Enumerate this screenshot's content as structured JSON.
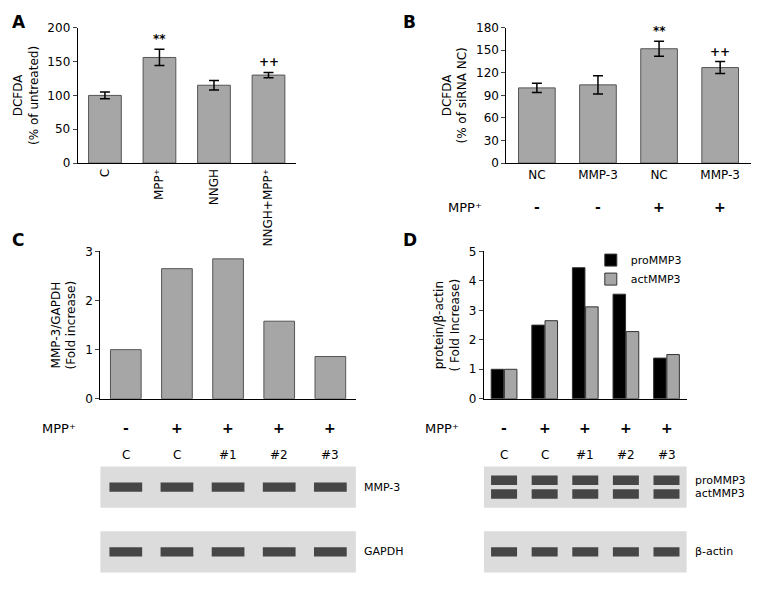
{
  "chart_data": [
    {
      "panel": "A",
      "type": "bar",
      "categories": [
        "C",
        "MPP⁺",
        "NNGH",
        "NNGH+MPP⁺"
      ],
      "values": [
        100,
        156,
        115,
        130
      ],
      "errors": [
        5,
        12,
        7,
        4
      ],
      "significance": [
        null,
        "**",
        null,
        "++"
      ],
      "y_label": [
        "DCFDA",
        "(% of untreated)"
      ],
      "color": "#a6a6a6",
      "ylim": [
        0,
        200
      ],
      "yticks": [
        0,
        50,
        100,
        150,
        200
      ],
      "grid": false
    },
    {
      "panel": "B",
      "type": "bar",
      "categories": [
        "NC",
        "MMP-3",
        "NC",
        "MMP-3"
      ],
      "values": [
        100,
        104,
        152,
        127
      ],
      "errors": [
        6,
        12,
        10,
        8
      ],
      "significance": [
        null,
        null,
        "**",
        "++"
      ],
      "row_label": "MPP⁺",
      "row_values": [
        "-",
        "-",
        "+",
        "+"
      ],
      "y_label": [
        "DCFDA",
        "(% of siRNA NC)"
      ],
      "color": "#a6a6a6",
      "ylim": [
        0,
        180
      ],
      "yticks": [
        0,
        30,
        60,
        90,
        120,
        150,
        180
      ],
      "grid": false
    },
    {
      "panel": "C",
      "type": "bar",
      "categories": [
        "C",
        "C",
        "#1",
        "#2",
        "#3"
      ],
      "values": [
        1,
        2.65,
        2.85,
        1.58,
        0.86
      ],
      "row_label": "MPP⁺",
      "row_values": [
        "-",
        "+",
        "+",
        "+",
        "+"
      ],
      "gel_labels": [
        "MMP-3",
        "GAPDH"
      ],
      "y_label": [
        "MMP-3/GAPDH",
        "(Fold increase)"
      ],
      "tick_labels": "y",
      "color": "#a6a6a6",
      "ylim": [
        0,
        3
      ],
      "yticks": [
        0,
        1,
        2,
        3
      ],
      "grid": false
    },
    {
      "panel": "D",
      "type": "bar",
      "categories": [
        "C",
        "C",
        "#1",
        "#2",
        "#3"
      ],
      "series": [
        {
          "name": "proMMP3",
          "color": "#000000",
          "values": [
            1,
            2.5,
            4.45,
            3.55,
            1.38
          ]
        },
        {
          "name": "actMMP3",
          "color": "#a6a6a6",
          "values": [
            1,
            2.65,
            3.12,
            2.28,
            1.5
          ]
        }
      ],
      "row_label": "MPP⁺",
      "row_values": [
        "-",
        "+",
        "+",
        "+",
        "+"
      ],
      "gel_labels": [
        "proMMP3",
        "actMMP3",
        "β-actin"
      ],
      "y_label": [
        "protein/β-actin",
        "( Fold Increase)"
      ],
      "tick_labels": "y",
      "legend": "top right",
      "ylim": [
        0,
        5
      ],
      "yticks": [
        0,
        1,
        2,
        3,
        4,
        5
      ],
      "grid": false
    }
  ]
}
